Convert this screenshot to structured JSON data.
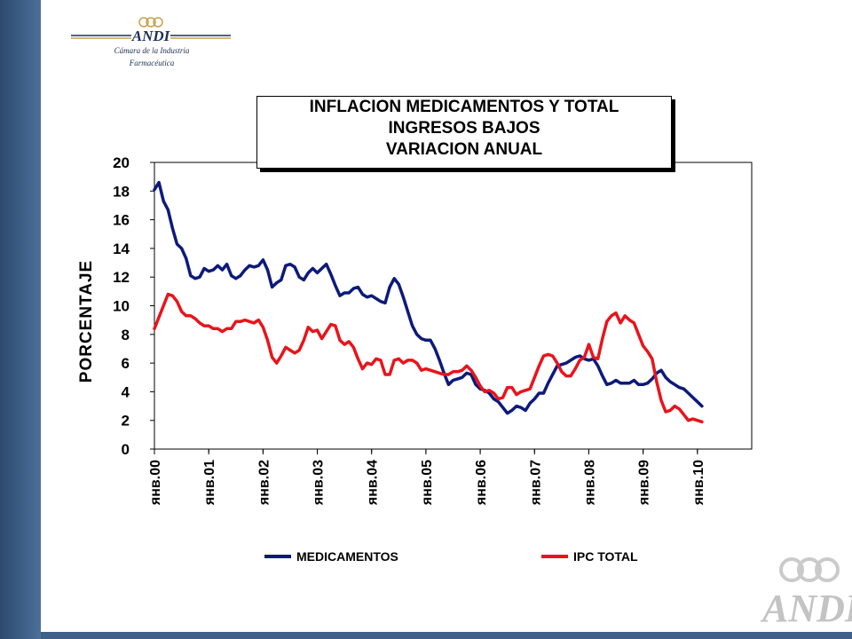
{
  "branding": {
    "logo_text": "ANDI",
    "subtitle_line1": "Cámara de la Industria",
    "subtitle_line2": "Farmacéutica",
    "watermark_text": "ANDI"
  },
  "colors": {
    "medicamentos": "#0d1a7a",
    "ipc_total": "#e8141c",
    "band": "#3d5f86"
  },
  "chart_data": {
    "type": "line",
    "title_lines": [
      "INFLACION MEDICAMENTOS Y TOTAL",
      "INGRESOS BAJOS",
      "VARIACION ANUAL"
    ],
    "xlabel": "",
    "ylabel": "PORCENTAJE",
    "ylim": [
      0,
      20
    ],
    "yticks": [
      0,
      2,
      4,
      6,
      8,
      10,
      12,
      14,
      16,
      18,
      20
    ],
    "xticks": [
      "янв.00",
      "янв.01",
      "янв.02",
      "янв.03",
      "янв.04",
      "янв.05",
      "янв.06",
      "янв.07",
      "янв.08",
      "янв.09",
      "янв.10"
    ],
    "xlim": [
      "2000-01",
      "2010-12"
    ],
    "grid": false,
    "legend_position": "bottom",
    "series": [
      {
        "name": "MEDICAMENTOS",
        "points": [
          [
            "2000-01",
            18.1
          ],
          [
            "2000-02",
            18.6
          ],
          [
            "2000-03",
            17.3
          ],
          [
            "2000-04",
            16.7
          ],
          [
            "2000-05",
            15.4
          ],
          [
            "2000-06",
            14.3
          ],
          [
            "2000-07",
            14.0
          ],
          [
            "2000-08",
            13.3
          ],
          [
            "2000-09",
            12.1
          ],
          [
            "2000-10",
            11.9
          ],
          [
            "2000-11",
            12.0
          ],
          [
            "2000-12",
            12.6
          ],
          [
            "2001-01",
            12.4
          ],
          [
            "2001-02",
            12.5
          ],
          [
            "2001-03",
            12.8
          ],
          [
            "2001-04",
            12.5
          ],
          [
            "2001-05",
            12.9
          ],
          [
            "2001-06",
            12.1
          ],
          [
            "2001-07",
            11.9
          ],
          [
            "2001-08",
            12.1
          ],
          [
            "2001-09",
            12.5
          ],
          [
            "2001-10",
            12.8
          ],
          [
            "2001-11",
            12.7
          ],
          [
            "2001-12",
            12.8
          ],
          [
            "2002-01",
            13.2
          ],
          [
            "2002-02",
            12.5
          ],
          [
            "2002-03",
            11.3
          ],
          [
            "2002-04",
            11.6
          ],
          [
            "2002-05",
            11.8
          ],
          [
            "2002-06",
            12.8
          ],
          [
            "2002-07",
            12.9
          ],
          [
            "2002-08",
            12.7
          ],
          [
            "2002-09",
            12.0
          ],
          [
            "2002-10",
            11.8
          ],
          [
            "2002-11",
            12.3
          ],
          [
            "2002-12",
            12.6
          ],
          [
            "2003-01",
            12.3
          ],
          [
            "2003-02",
            12.6
          ],
          [
            "2003-03",
            12.9
          ],
          [
            "2003-04",
            12.2
          ],
          [
            "2003-05",
            11.4
          ],
          [
            "2003-06",
            10.7
          ],
          [
            "2003-07",
            10.9
          ],
          [
            "2003-08",
            10.9
          ],
          [
            "2003-09",
            11.2
          ],
          [
            "2003-10",
            11.3
          ],
          [
            "2003-11",
            10.8
          ],
          [
            "2003-12",
            10.6
          ],
          [
            "2004-01",
            10.7
          ],
          [
            "2004-02",
            10.5
          ],
          [
            "2004-03",
            10.3
          ],
          [
            "2004-04",
            10.2
          ],
          [
            "2004-05",
            11.3
          ],
          [
            "2004-06",
            11.9
          ],
          [
            "2004-07",
            11.5
          ],
          [
            "2004-08",
            10.6
          ],
          [
            "2004-09",
            9.6
          ],
          [
            "2004-10",
            8.6
          ],
          [
            "2004-11",
            8.0
          ],
          [
            "2004-12",
            7.7
          ],
          [
            "2005-01",
            7.6
          ],
          [
            "2005-02",
            7.6
          ],
          [
            "2005-03",
            7.0
          ],
          [
            "2005-04",
            6.2
          ],
          [
            "2005-05",
            5.3
          ],
          [
            "2005-06",
            4.5
          ],
          [
            "2005-07",
            4.8
          ],
          [
            "2005-08",
            4.9
          ],
          [
            "2005-09",
            5.0
          ],
          [
            "2005-10",
            5.3
          ],
          [
            "2005-11",
            5.2
          ],
          [
            "2005-12",
            4.5
          ],
          [
            "2006-01",
            4.2
          ],
          [
            "2006-02",
            4.1
          ],
          [
            "2006-03",
            3.9
          ],
          [
            "2006-04",
            3.5
          ],
          [
            "2006-05",
            3.3
          ],
          [
            "2006-06",
            2.9
          ],
          [
            "2006-07",
            2.5
          ],
          [
            "2006-08",
            2.7
          ],
          [
            "2006-09",
            3.0
          ],
          [
            "2006-10",
            2.9
          ],
          [
            "2006-11",
            2.7
          ],
          [
            "2006-12",
            3.2
          ],
          [
            "2007-01",
            3.5
          ],
          [
            "2007-02",
            3.9
          ],
          [
            "2007-03",
            3.9
          ],
          [
            "2007-04",
            4.6
          ],
          [
            "2007-05",
            5.2
          ],
          [
            "2007-06",
            5.8
          ],
          [
            "2007-07",
            5.9
          ],
          [
            "2007-08",
            6.0
          ],
          [
            "2007-09",
            6.2
          ],
          [
            "2007-10",
            6.4
          ],
          [
            "2007-11",
            6.5
          ],
          [
            "2007-12",
            6.3
          ],
          [
            "2008-01",
            6.2
          ],
          [
            "2008-02",
            6.3
          ],
          [
            "2008-03",
            5.8
          ],
          [
            "2008-04",
            5.1
          ],
          [
            "2008-05",
            4.5
          ],
          [
            "2008-06",
            4.6
          ],
          [
            "2008-07",
            4.8
          ],
          [
            "2008-08",
            4.6
          ],
          [
            "2008-09",
            4.6
          ],
          [
            "2008-10",
            4.6
          ],
          [
            "2008-11",
            4.8
          ],
          [
            "2008-12",
            4.5
          ],
          [
            "2009-01",
            4.5
          ],
          [
            "2009-02",
            4.6
          ],
          [
            "2009-03",
            4.9
          ],
          [
            "2009-04",
            5.3
          ],
          [
            "2009-05",
            5.5
          ],
          [
            "2009-06",
            5.0
          ],
          [
            "2009-07",
            4.7
          ],
          [
            "2009-08",
            4.5
          ],
          [
            "2009-09",
            4.3
          ],
          [
            "2009-10",
            4.2
          ],
          [
            "2009-11",
            3.9
          ],
          [
            "2009-12",
            3.6
          ],
          [
            "2010-01",
            3.3
          ],
          [
            "2010-02",
            3.0
          ]
        ]
      },
      {
        "name": "IPC TOTAL",
        "points": [
          [
            "2000-01",
            8.4
          ],
          [
            "2000-02",
            9.2
          ],
          [
            "2000-03",
            10.0
          ],
          [
            "2000-04",
            10.8
          ],
          [
            "2000-05",
            10.7
          ],
          [
            "2000-06",
            10.3
          ],
          [
            "2000-07",
            9.6
          ],
          [
            "2000-08",
            9.3
          ],
          [
            "2000-09",
            9.3
          ],
          [
            "2000-10",
            9.1
          ],
          [
            "2000-11",
            8.8
          ],
          [
            "2000-12",
            8.6
          ],
          [
            "2001-01",
            8.6
          ],
          [
            "2001-02",
            8.4
          ],
          [
            "2001-03",
            8.4
          ],
          [
            "2001-04",
            8.2
          ],
          [
            "2001-05",
            8.4
          ],
          [
            "2001-06",
            8.4
          ],
          [
            "2001-07",
            8.9
          ],
          [
            "2001-08",
            8.9
          ],
          [
            "2001-09",
            9.0
          ],
          [
            "2001-10",
            8.9
          ],
          [
            "2001-11",
            8.8
          ],
          [
            "2001-12",
            9.0
          ],
          [
            "2002-01",
            8.5
          ],
          [
            "2002-02",
            7.6
          ],
          [
            "2002-03",
            6.4
          ],
          [
            "2002-04",
            6.0
          ],
          [
            "2002-05",
            6.5
          ],
          [
            "2002-06",
            7.1
          ],
          [
            "2002-07",
            6.9
          ],
          [
            "2002-08",
            6.7
          ],
          [
            "2002-09",
            6.9
          ],
          [
            "2002-10",
            7.6
          ],
          [
            "2002-11",
            8.5
          ],
          [
            "2002-12",
            8.2
          ],
          [
            "2003-01",
            8.3
          ],
          [
            "2003-02",
            7.7
          ],
          [
            "2003-03",
            8.2
          ],
          [
            "2003-04",
            8.7
          ],
          [
            "2003-05",
            8.6
          ],
          [
            "2003-06",
            7.6
          ],
          [
            "2003-07",
            7.3
          ],
          [
            "2003-08",
            7.5
          ],
          [
            "2003-09",
            7.1
          ],
          [
            "2003-10",
            6.3
          ],
          [
            "2003-11",
            5.6
          ],
          [
            "2003-12",
            6.0
          ],
          [
            "2004-01",
            5.9
          ],
          [
            "2004-02",
            6.3
          ],
          [
            "2004-03",
            6.2
          ],
          [
            "2004-04",
            5.2
          ],
          [
            "2004-05",
            5.2
          ],
          [
            "2004-06",
            6.2
          ],
          [
            "2004-07",
            6.3
          ],
          [
            "2004-08",
            6.0
          ],
          [
            "2004-09",
            6.2
          ],
          [
            "2004-10",
            6.2
          ],
          [
            "2004-11",
            6.0
          ],
          [
            "2004-12",
            5.5
          ],
          [
            "2005-01",
            5.6
          ],
          [
            "2005-02",
            5.5
          ],
          [
            "2005-03",
            5.4
          ],
          [
            "2005-04",
            5.3
          ],
          [
            "2005-05",
            5.2
          ],
          [
            "2005-06",
            5.2
          ],
          [
            "2005-07",
            5.4
          ],
          [
            "2005-08",
            5.4
          ],
          [
            "2005-09",
            5.5
          ],
          [
            "2005-10",
            5.8
          ],
          [
            "2005-11",
            5.5
          ],
          [
            "2005-12",
            5.0
          ],
          [
            "2006-01",
            4.4
          ],
          [
            "2006-02",
            4.0
          ],
          [
            "2006-03",
            4.1
          ],
          [
            "2006-04",
            3.9
          ],
          [
            "2006-05",
            3.5
          ],
          [
            "2006-06",
            3.6
          ],
          [
            "2006-07",
            4.3
          ],
          [
            "2006-08",
            4.3
          ],
          [
            "2006-09",
            3.8
          ],
          [
            "2006-10",
            4.0
          ],
          [
            "2006-11",
            4.1
          ],
          [
            "2006-12",
            4.2
          ],
          [
            "2007-01",
            5.0
          ],
          [
            "2007-02",
            5.8
          ],
          [
            "2007-03",
            6.5
          ],
          [
            "2007-04",
            6.6
          ],
          [
            "2007-05",
            6.5
          ],
          [
            "2007-06",
            6.0
          ],
          [
            "2007-07",
            5.4
          ],
          [
            "2007-08",
            5.1
          ],
          [
            "2007-09",
            5.1
          ],
          [
            "2007-10",
            5.6
          ],
          [
            "2007-11",
            6.2
          ],
          [
            "2007-12",
            6.4
          ],
          [
            "2008-01",
            7.3
          ],
          [
            "2008-02",
            6.4
          ],
          [
            "2008-03",
            6.3
          ],
          [
            "2008-04",
            7.7
          ],
          [
            "2008-05",
            8.9
          ],
          [
            "2008-06",
            9.3
          ],
          [
            "2008-07",
            9.5
          ],
          [
            "2008-08",
            8.8
          ],
          [
            "2008-09",
            9.3
          ],
          [
            "2008-10",
            9.0
          ],
          [
            "2008-11",
            8.8
          ],
          [
            "2008-12",
            8.0
          ],
          [
            "2009-01",
            7.2
          ],
          [
            "2009-02",
            6.8
          ],
          [
            "2009-03",
            6.3
          ],
          [
            "2009-04",
            4.7
          ],
          [
            "2009-05",
            3.4
          ],
          [
            "2009-06",
            2.6
          ],
          [
            "2009-07",
            2.7
          ],
          [
            "2009-08",
            3.0
          ],
          [
            "2009-09",
            2.8
          ],
          [
            "2009-10",
            2.4
          ],
          [
            "2009-11",
            2.0
          ],
          [
            "2009-12",
            2.1
          ],
          [
            "2010-01",
            2.0
          ],
          [
            "2010-02",
            1.9
          ]
        ]
      }
    ]
  }
}
